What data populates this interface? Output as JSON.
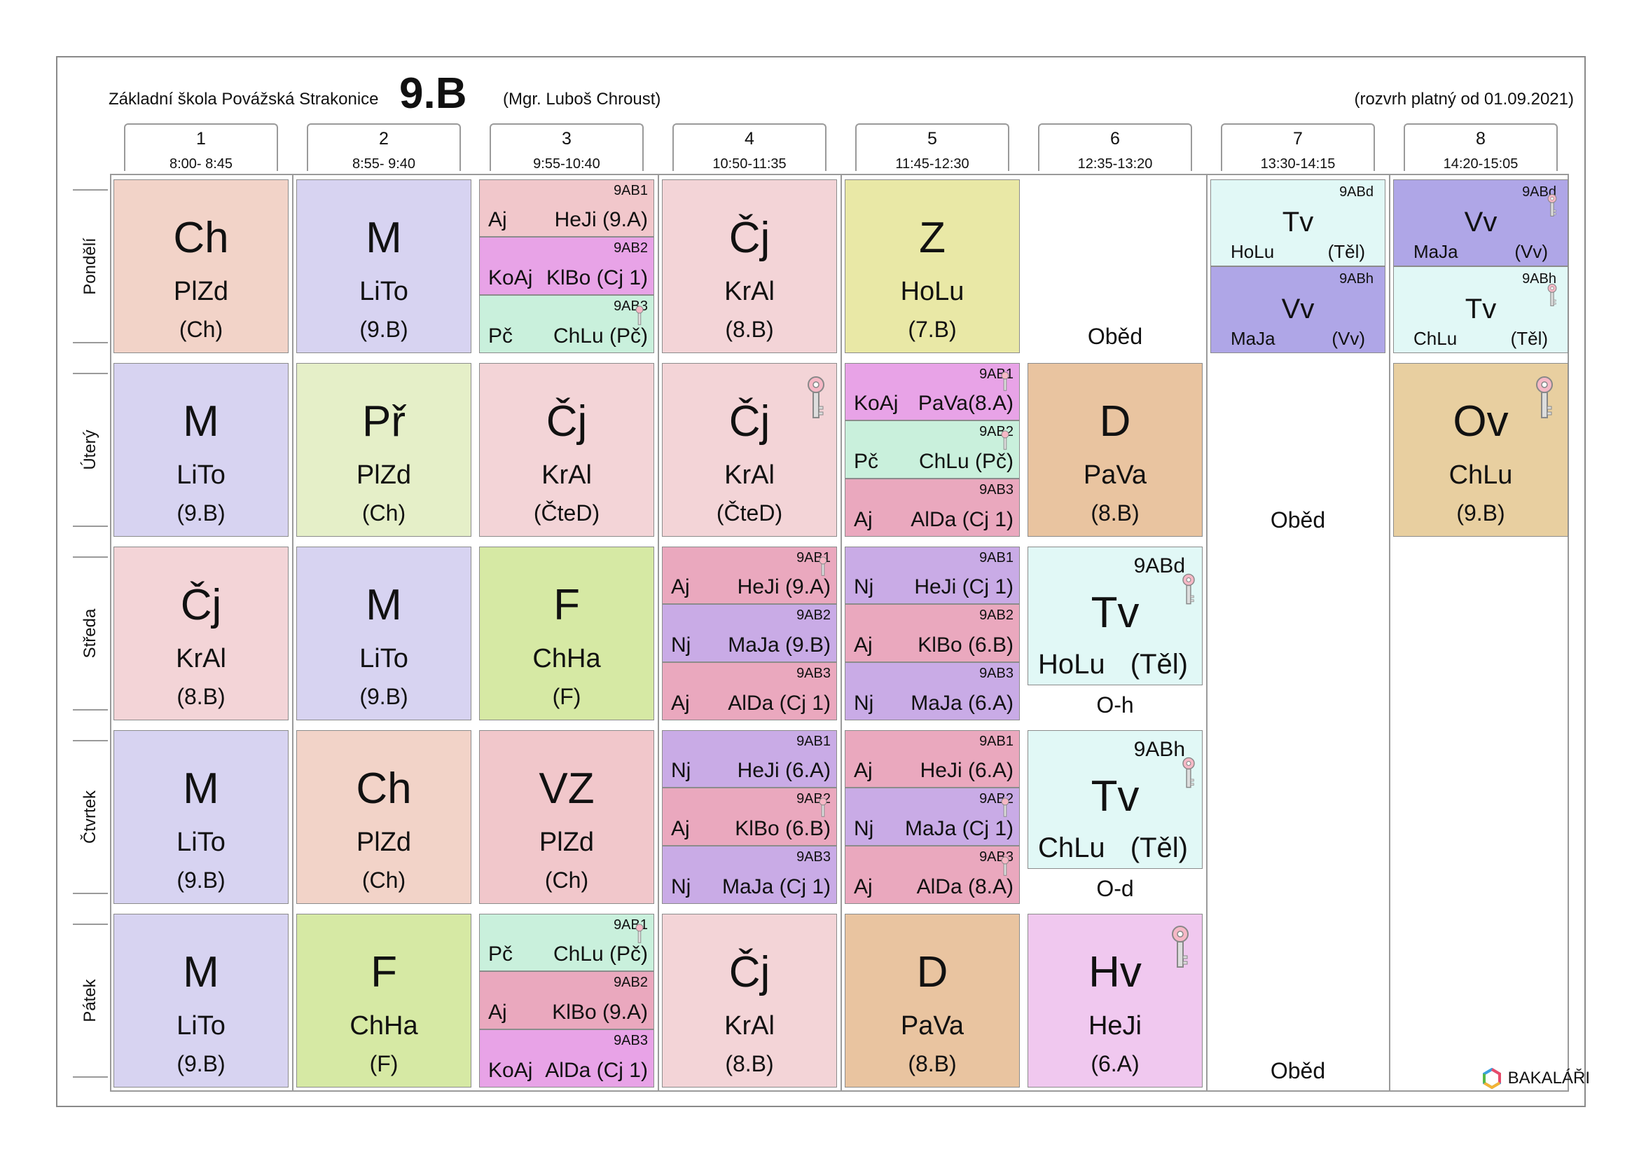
{
  "header": {
    "school": "Základní škola Povážská Strakonice",
    "class": "9.B",
    "teacher": "(Mgr. Luboš Chroust)",
    "validity": "(rozvrh platný od 01.09.2021)"
  },
  "periods": [
    {
      "num": "1",
      "time": "8:00- 8:45"
    },
    {
      "num": "2",
      "time": "8:55- 9:40"
    },
    {
      "num": "3",
      "time": "9:55-10:40"
    },
    {
      "num": "4",
      "time": "10:50-11:35"
    },
    {
      "num": "5",
      "time": "11:45-12:30"
    },
    {
      "num": "6",
      "time": "12:35-13:20"
    },
    {
      "num": "7",
      "time": "13:30-14:15"
    },
    {
      "num": "8",
      "time": "14:20-15:05"
    }
  ],
  "days": [
    "Pondělí",
    "Úterý",
    "Středa",
    "Čtvrtek",
    "Pátek"
  ],
  "colors": {
    "chemistry": "#f2d3c8",
    "math": "#d7d3f1",
    "czech": "#f3d4d7",
    "geography": "#e9e8a6",
    "physics": "#d6e9a4",
    "science": "#e5efc8",
    "history": "#e9c4a0",
    "music": "#f0c8ef",
    "civics": "#e8cfa0",
    "health": "#f1c7cb",
    "pe": "#e1f8f6",
    "art": "#afa6e7",
    "english": "#eaa8be",
    "german": "#c9abe6",
    "computing": "#e8a3e7",
    "practical": "#c9f0dc",
    "grid_border": "#9a9a9a",
    "key": "#e8a0b0"
  },
  "lessons": {
    "mon1": {
      "subj": "Ch",
      "teacher": "PlZd",
      "room": "(Ch)"
    },
    "mon2": {
      "subj": "M",
      "teacher": "LiTo",
      "room": "(9.B)"
    },
    "mon4": {
      "subj": "Čj",
      "teacher": "KrAl",
      "room": "(8.B)"
    },
    "mon5": {
      "subj": "Z",
      "teacher": "HoLu",
      "room": "(7.B)"
    },
    "tue1": {
      "subj": "M",
      "teacher": "LiTo",
      "room": "(9.B)"
    },
    "tue2": {
      "subj": "Př",
      "teacher": "PlZd",
      "room": "(Ch)"
    },
    "tue3": {
      "subj": "Čj",
      "teacher": "KrAl",
      "room": "(ČteD)"
    },
    "tue4": {
      "subj": "Čj",
      "teacher": "KrAl",
      "room": "(ČteD)"
    },
    "tue6": {
      "subj": "D",
      "teacher": "PaVa",
      "room": "(8.B)"
    },
    "tue8": {
      "subj": "Ov",
      "teacher": "ChLu",
      "room": "(9.B)"
    },
    "wed1": {
      "subj": "Čj",
      "teacher": "KrAl",
      "room": "(8.B)"
    },
    "wed2": {
      "subj": "M",
      "teacher": "LiTo",
      "room": "(9.B)"
    },
    "wed3": {
      "subj": "F",
      "teacher": "ChHa",
      "room": "(F)"
    },
    "thu1": {
      "subj": "M",
      "teacher": "LiTo",
      "room": "(9.B)"
    },
    "thu2": {
      "subj": "Ch",
      "teacher": "PlZd",
      "room": "(Ch)"
    },
    "thu3": {
      "subj": "VZ",
      "teacher": "PlZd",
      "room": "(Ch)"
    },
    "fri1": {
      "subj": "M",
      "teacher": "LiTo",
      "room": "(9.B)"
    },
    "fri2": {
      "subj": "F",
      "teacher": "ChHa",
      "room": "(F)"
    },
    "fri4": {
      "subj": "Čj",
      "teacher": "KrAl",
      "room": "(8.B)"
    },
    "fri5": {
      "subj": "D",
      "teacher": "PaVa",
      "room": "(8.B)"
    },
    "fri6": {
      "subj": "Hv",
      "teacher": "HeJi",
      "room": "(6.A)"
    }
  },
  "split": {
    "mon3": [
      {
        "group": "9AB1",
        "subj": "Aj",
        "tr": "HeJi (9.A)"
      },
      {
        "group": "9AB2",
        "subj": "KoAj",
        "tr": "KlBo (Cj 1)"
      },
      {
        "group": "9AB3",
        "subj": "Pč",
        "tr": "ChLu (Pč)"
      }
    ],
    "tue5": [
      {
        "group": "9AB1",
        "subj": "KoAj",
        "tr": "PaVa(8.A)"
      },
      {
        "group": "9AB2",
        "subj": "Pč",
        "tr": "ChLu (Pč)"
      },
      {
        "group": "9AB3",
        "subj": "Aj",
        "tr": "AlDa (Cj 1)"
      }
    ],
    "wed4": [
      {
        "group": "9AB1",
        "subj": "Aj",
        "tr": "HeJi (9.A)"
      },
      {
        "group": "9AB2",
        "subj": "Nj",
        "tr": "MaJa (9.B)"
      },
      {
        "group": "9AB3",
        "subj": "Aj",
        "tr": "AlDa (Cj 1)"
      }
    ],
    "wed5": [
      {
        "group": "9AB1",
        "subj": "Nj",
        "tr": "HeJi (Cj 1)"
      },
      {
        "group": "9AB2",
        "subj": "Aj",
        "tr": "KlBo (6.B)"
      },
      {
        "group": "9AB3",
        "subj": "Nj",
        "tr": "MaJa (6.A)"
      }
    ],
    "thu4": [
      {
        "group": "9AB1",
        "subj": "Nj",
        "tr": "HeJi (6.A)"
      },
      {
        "group": "9AB2",
        "subj": "Aj",
        "tr": "KlBo (6.B)"
      },
      {
        "group": "9AB3",
        "subj": "Nj",
        "tr": "MaJa (Cj 1)"
      }
    ],
    "thu5": [
      {
        "group": "9AB1",
        "subj": "Aj",
        "tr": "HeJi (6.A)"
      },
      {
        "group": "9AB2",
        "subj": "Nj",
        "tr": "MaJa (Cj 1)"
      },
      {
        "group": "9AB3",
        "subj": "Aj",
        "tr": "AlDa (8.A)"
      }
    ],
    "fri3": [
      {
        "group": "9AB1",
        "subj": "Pč",
        "tr": "ChLu (Pč)"
      },
      {
        "group": "9AB2",
        "subj": "Aj",
        "tr": "KlBo (9.A)"
      },
      {
        "group": "9AB3",
        "subj": "KoAj",
        "tr": "AlDa (Cj 1)"
      }
    ]
  },
  "pe": {
    "mon7a": {
      "group": "9ABd",
      "subj": "Tv",
      "teacher": "HoLu",
      "room": "(Těl)"
    },
    "mon7b": {
      "group": "9ABh",
      "subj": "Vv",
      "teacher": "MaJa",
      "room": "(Vv)"
    },
    "mon8a": {
      "group": "9ABd",
      "subj": "Vv",
      "teacher": "MaJa",
      "room": "(Vv)"
    },
    "mon8b": {
      "group": "9ABh",
      "subj": "Tv",
      "teacher": "ChLu",
      "room": "(Těl)"
    },
    "wed6": {
      "group": "9ABd",
      "subj": "Tv",
      "teacher": "HoLu",
      "room": "(Těl)"
    },
    "thu6": {
      "group": "9ABh",
      "subj": "Tv",
      "teacher": "ChLu",
      "room": "(Těl)"
    }
  },
  "notes": {
    "lunch": "Oběd",
    "wed6_extra": "O-h",
    "thu6_extra": "O-d"
  },
  "brand": "BAKALÁŘI"
}
